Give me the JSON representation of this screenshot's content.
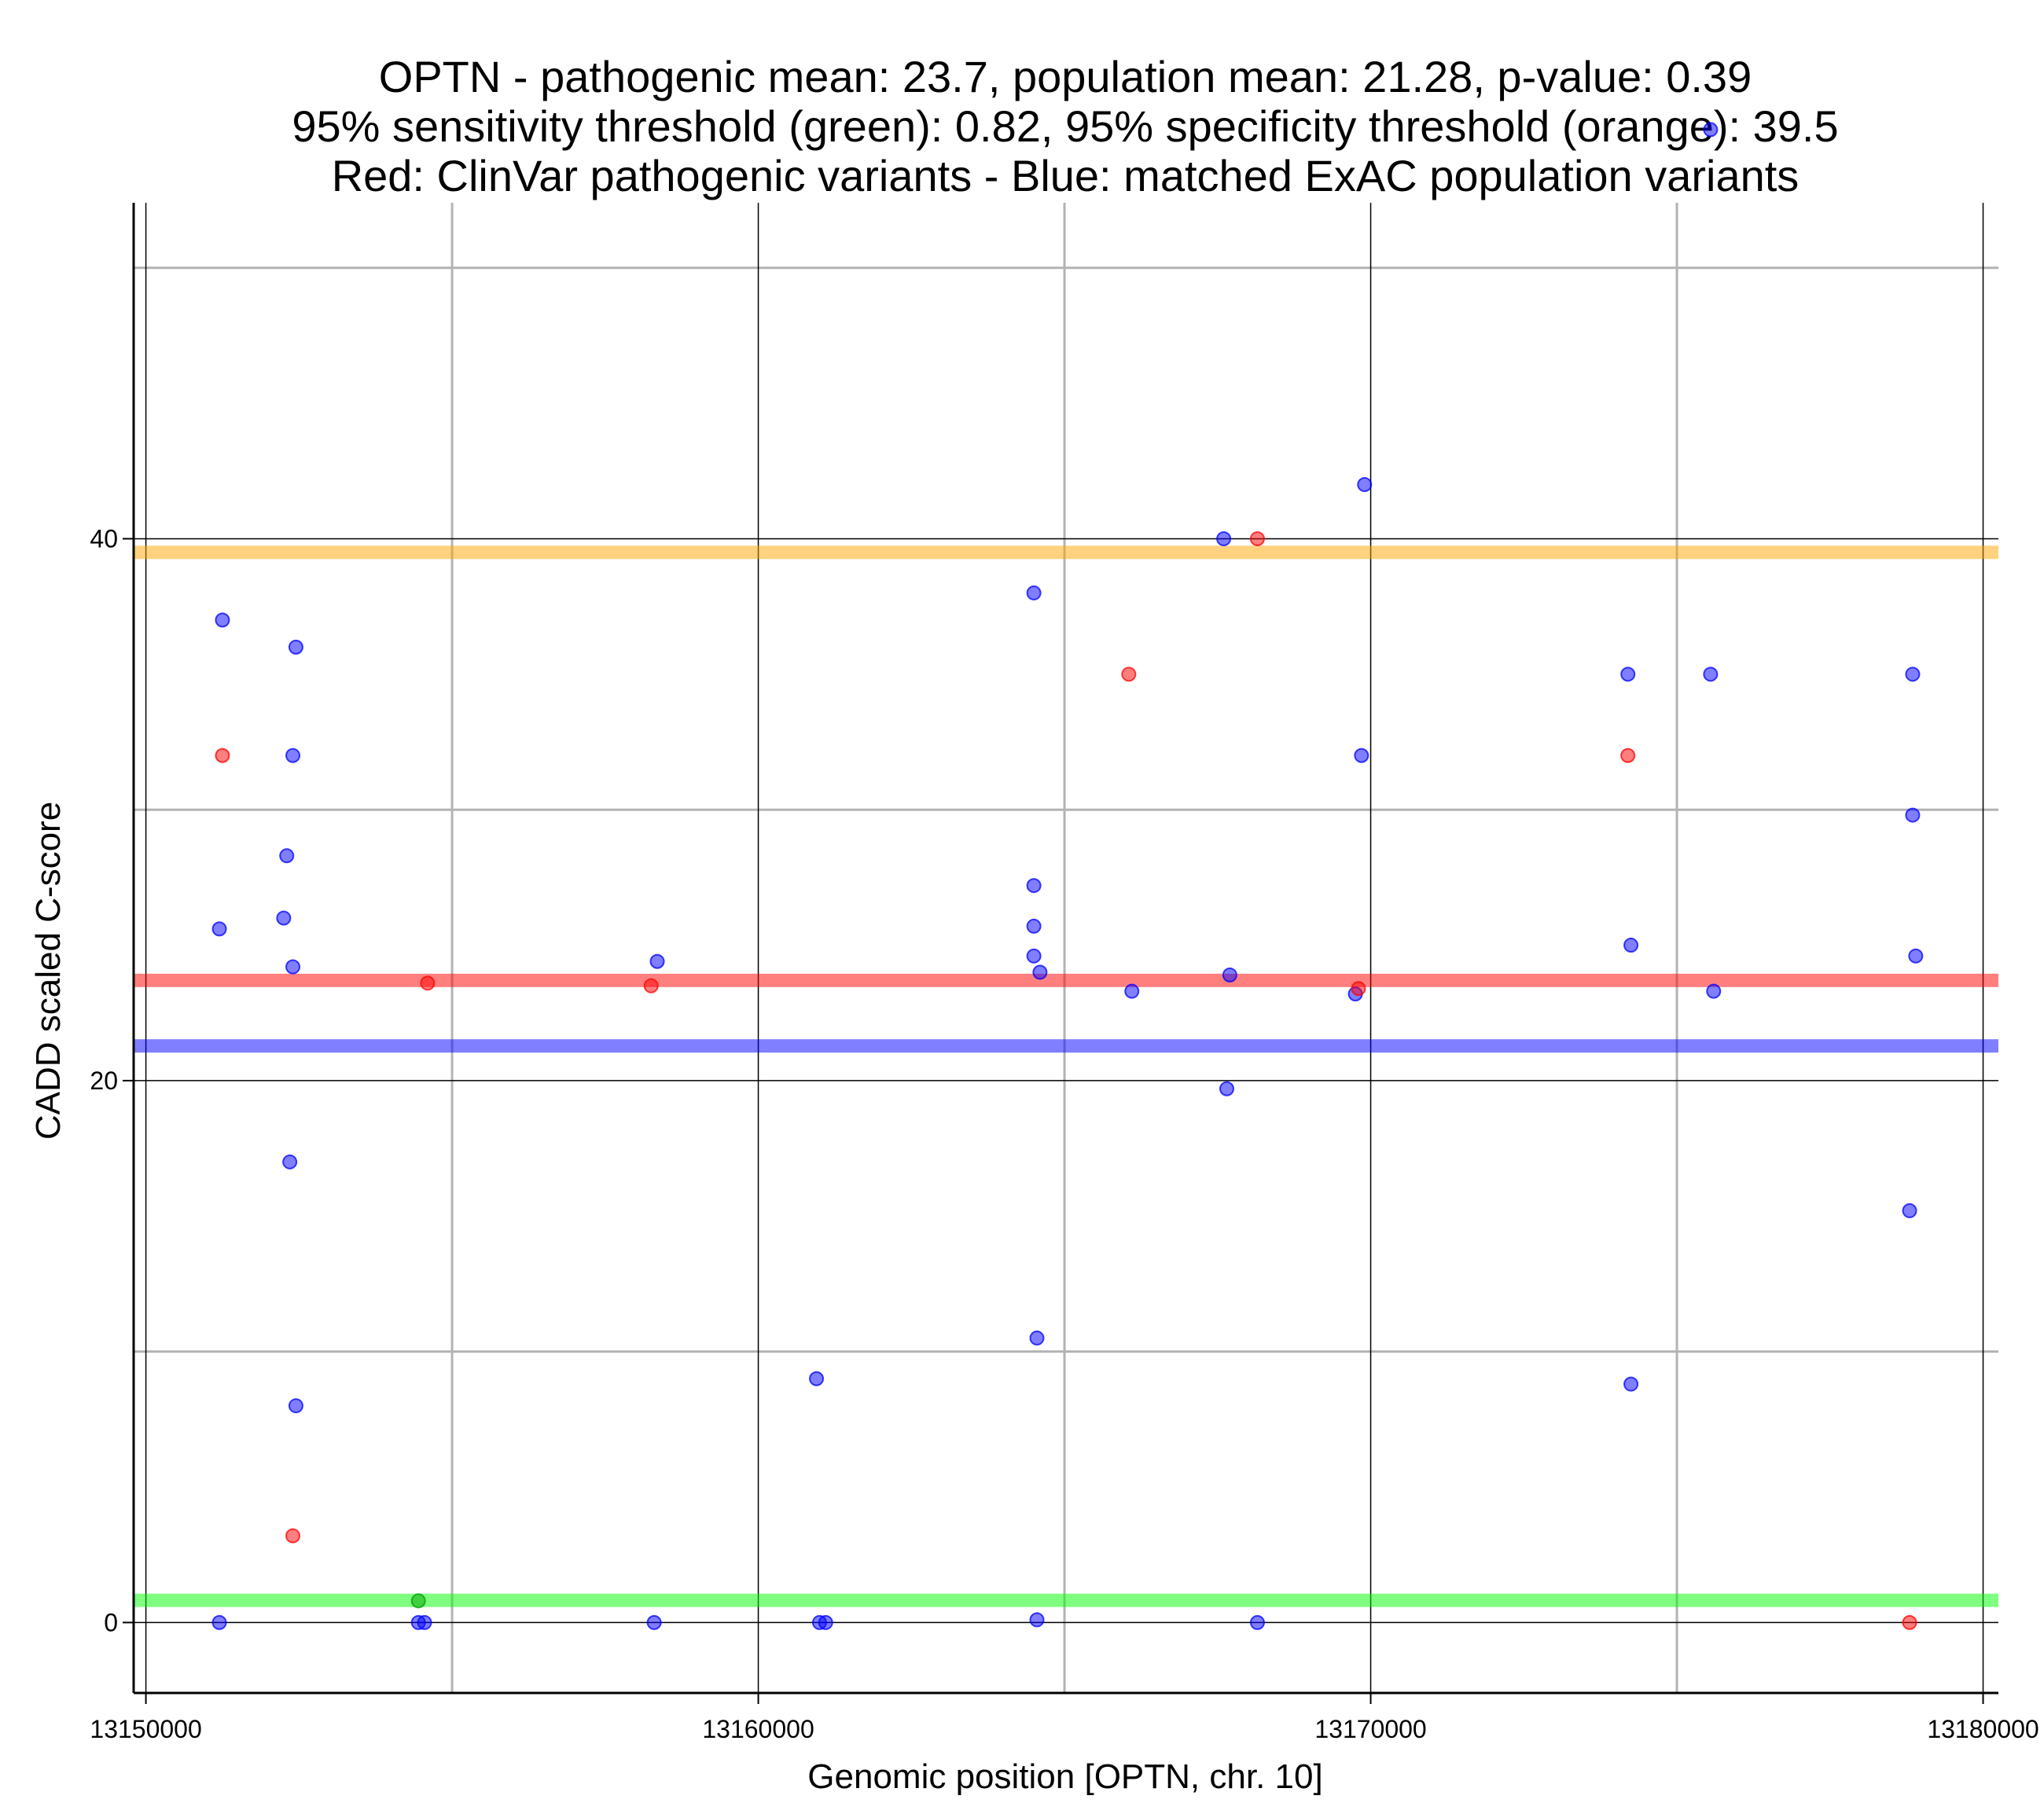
{
  "chart_data": {
    "type": "scatter",
    "title_lines": [
      "OPTN - pathogenic mean: 23.7, population mean: 21.28, p-value: 0.39",
      "95% sensitivity threshold (green): 0.82, 95% specificity threshold (orange): 39.5",
      "Red: ClinVar pathogenic variants - Blue: matched ExAC population variants"
    ],
    "xlabel": "Genomic position [OPTN, chr. 10]",
    "ylabel": "CADD scaled C-score",
    "xlim": [
      13149800,
      13180250
    ],
    "ylim": [
      -2.6,
      52.4
    ],
    "x_ticks": [
      13150000,
      13160000,
      13170000,
      13180000
    ],
    "x_tick_labels": [
      "13150000",
      "13160000",
      "13170000",
      "13180000"
    ],
    "y_ticks": [
      0,
      20,
      40
    ],
    "y_tick_labels": [
      "0",
      "20",
      "40"
    ],
    "x_minor": [
      13155000,
      13165000,
      13175000
    ],
    "y_minor": [
      10,
      30,
      50
    ],
    "grid": true,
    "hlines": [
      {
        "y": 39.5,
        "color": "#FFA500"
      },
      {
        "y": 23.7,
        "color": "#FF0000"
      },
      {
        "y": 21.28,
        "color": "#0000FF"
      },
      {
        "y": 0.82,
        "color": "#00FF00"
      }
    ],
    "series": [
      {
        "color": "#0000FF",
        "points": [
          [
            13151200,
            0
          ],
          [
            13151250,
            37
          ],
          [
            13151200,
            25.6
          ],
          [
            13152300,
            28.3
          ],
          [
            13152250,
            26
          ],
          [
            13152400,
            24.2
          ],
          [
            13152450,
            36
          ],
          [
            13152400,
            32
          ],
          [
            13152350,
            17
          ],
          [
            13152450,
            8
          ],
          [
            13154450,
            0
          ],
          [
            13154550,
            0
          ],
          [
            13158300,
            0
          ],
          [
            13158350,
            24.4
          ],
          [
            13160950,
            9
          ],
          [
            13161000,
            0
          ],
          [
            13161100,
            0
          ],
          [
            13164500,
            38
          ],
          [
            13164500,
            27.2
          ],
          [
            13164500,
            25.7
          ],
          [
            13164500,
            24.6
          ],
          [
            13164600,
            24
          ],
          [
            13164550,
            10.5
          ],
          [
            13164550,
            0.1
          ],
          [
            13166100,
            23.3
          ],
          [
            13167600,
            40
          ],
          [
            13167700,
            23.9
          ],
          [
            13167650,
            19.7
          ],
          [
            13168150,
            0
          ],
          [
            13169750,
            23.2
          ],
          [
            13169850,
            32
          ],
          [
            13169900,
            42
          ],
          [
            13174200,
            35
          ],
          [
            13174250,
            25
          ],
          [
            13174250,
            8.8
          ],
          [
            13175550,
            55.1
          ],
          [
            13175550,
            35
          ],
          [
            13175600,
            23.3
          ],
          [
            13178850,
            35
          ],
          [
            13178850,
            29.8
          ],
          [
            13178900,
            24.6
          ],
          [
            13178800,
            15.2
          ]
        ]
      },
      {
        "color": "#FF0000",
        "points": [
          [
            13151250,
            32
          ],
          [
            13152400,
            3.2
          ],
          [
            13154600,
            23.6
          ],
          [
            13158250,
            23.5
          ],
          [
            13166050,
            35
          ],
          [
            13168150,
            40
          ],
          [
            13169800,
            23.4
          ],
          [
            13174200,
            32
          ],
          [
            13178800,
            0
          ]
        ]
      },
      {
        "color": "#00A000",
        "points": [
          [
            13154450,
            0.8
          ]
        ]
      }
    ]
  }
}
